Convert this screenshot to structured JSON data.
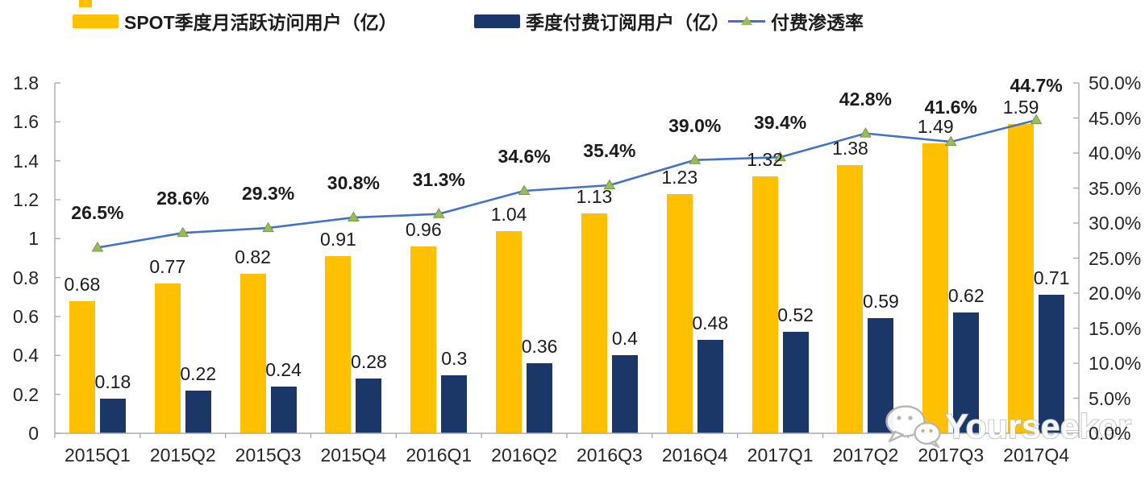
{
  "legend": {
    "items": [
      {
        "label": "SPOT季度月活跃访问用户（亿）",
        "swatch": "bar",
        "color": "#FFC001"
      },
      {
        "label": "季度付费订阅用户（亿）",
        "swatch": "bar",
        "color": "#1B3768"
      },
      {
        "label": "付费渗透率",
        "swatch": "line",
        "color": "#4472C4",
        "marker": "triangle",
        "marker_color": "#9BBB59"
      }
    ]
  },
  "chart_data": {
    "type": "bar",
    "subtype": "combo dual-axis: clustered bars + line with triangle markers",
    "categories": [
      "2015Q1",
      "2015Q2",
      "2015Q3",
      "2015Q4",
      "2016Q1",
      "2016Q2",
      "2016Q3",
      "2016Q4",
      "2017Q1",
      "2017Q2",
      "2017Q3",
      "2017Q4"
    ],
    "series": [
      {
        "name": "SPOT季度月活跃访问用户（亿）",
        "type": "bar",
        "axis": "left",
        "color": "#FFC001",
        "values": [
          0.68,
          0.77,
          0.82,
          0.91,
          0.96,
          1.04,
          1.13,
          1.23,
          1.32,
          1.38,
          1.49,
          1.59
        ],
        "labels": [
          "0.68",
          "0.77",
          "0.82",
          "0.91",
          "0.96",
          "1.04",
          "1.13",
          "1.23",
          "1.32",
          "1.38",
          "1.49",
          "1.59"
        ]
      },
      {
        "name": "季度付费订阅用户（亿）",
        "type": "bar",
        "axis": "left",
        "color": "#1B3768",
        "values": [
          0.18,
          0.22,
          0.24,
          0.28,
          0.3,
          0.36,
          0.4,
          0.48,
          0.52,
          0.59,
          0.62,
          0.71
        ],
        "labels": [
          "0.18",
          "0.22",
          "0.24",
          "0.28",
          "0.3",
          "0.36",
          "0.4",
          "0.48",
          "0.52",
          "0.59",
          "0.62",
          "0.71"
        ]
      },
      {
        "name": "付费渗透率",
        "type": "line",
        "axis": "right",
        "color": "#4472C4",
        "marker_color": "#9BBB59",
        "values": [
          26.5,
          28.6,
          29.3,
          30.8,
          31.3,
          34.6,
          35.4,
          39.0,
          39.4,
          42.8,
          41.6,
          44.7
        ],
        "labels": [
          "26.5%",
          "28.6%",
          "29.3%",
          "30.8%",
          "31.3%",
          "34.6%",
          "35.4%",
          "39.0%",
          "39.4%",
          "42.8%",
          "41.6%",
          "44.7%"
        ]
      }
    ],
    "left_axis": {
      "min": 0,
      "max": 1.8,
      "ticks": [
        "0",
        "0.2",
        "0.4",
        "0.6",
        "0.8",
        "1",
        "1.2",
        "1.4",
        "1.6",
        "1.8"
      ]
    },
    "right_axis": {
      "min": 0,
      "max": 50,
      "ticks": [
        "0.0%",
        "5.0%",
        "10.0%",
        "15.0%",
        "20.0%",
        "25.0%",
        "30.0%",
        "35.0%",
        "40.0%",
        "45.0%",
        "50.0%"
      ]
    },
    "grid": "off",
    "legend_position": "top"
  },
  "watermark": {
    "text": "Yourseeker",
    "icon": "wechat-icon"
  },
  "colors": {
    "bar_mau": "#FFC001",
    "bar_subscribers": "#1B3768",
    "line": "#4472C4",
    "marker": "#9BBB59",
    "axis": "#ACACAC",
    "label_text": "#1c1c1c"
  }
}
